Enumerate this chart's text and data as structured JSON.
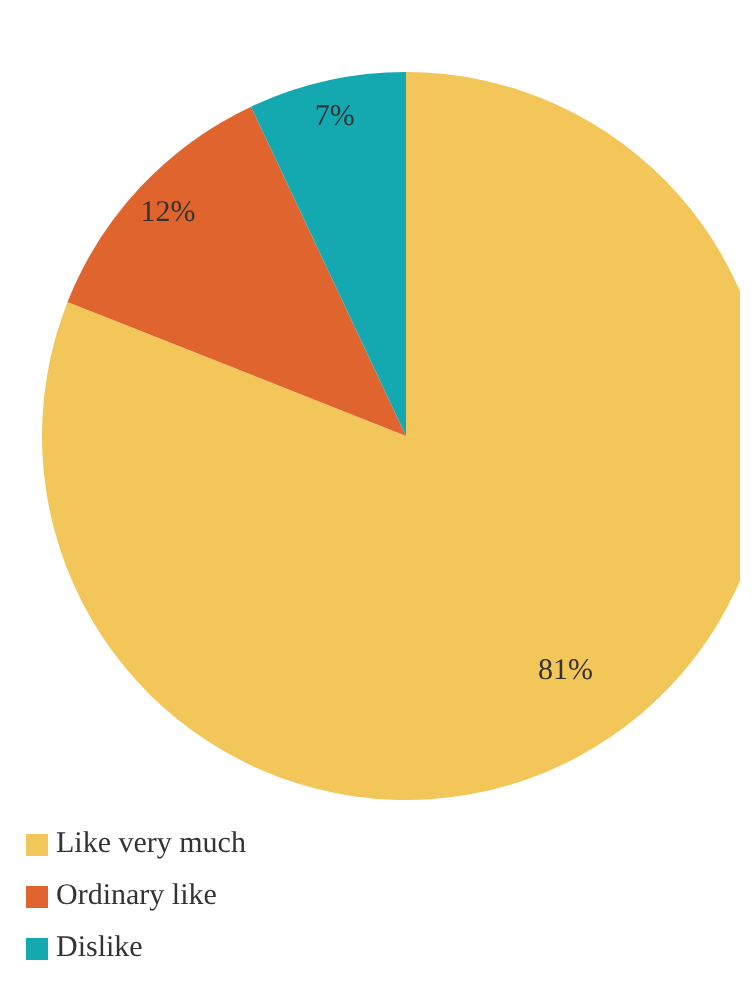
{
  "chart_data": {
    "type": "pie",
    "categories": [
      "Like very much",
      "Ordinary like",
      "Dislike"
    ],
    "values": [
      81,
      12,
      7
    ],
    "colors": [
      "#f3c65a",
      "#e0642e",
      "#14a9b1"
    ],
    "value_labels": [
      "81%",
      "12%",
      "7%"
    ],
    "legend": "bottom left"
  }
}
